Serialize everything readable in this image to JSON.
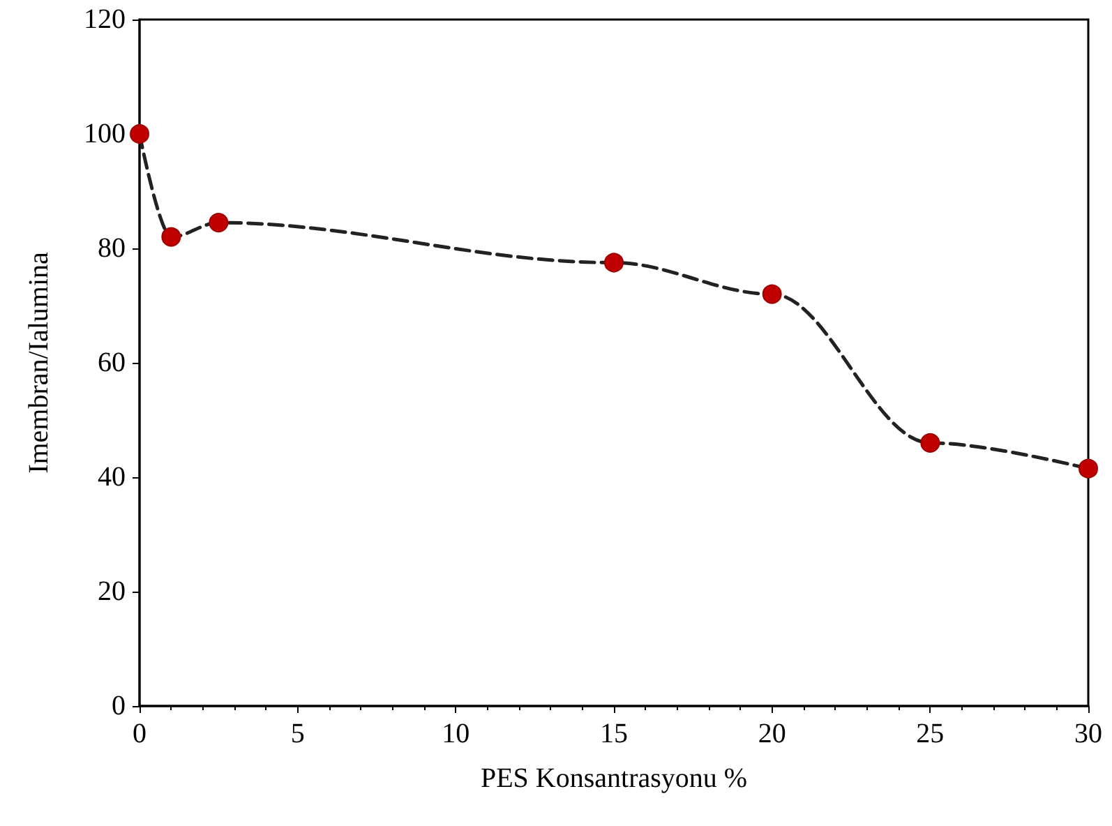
{
  "chart_data": {
    "type": "line",
    "xlabel": "PES Konsantrasyonu %",
    "ylabel": "Imembran/Ialumina",
    "x": [
      0,
      1,
      2.5,
      15,
      20,
      25,
      30
    ],
    "series": [
      {
        "color": "#c00000",
        "values": [
          100,
          82,
          84.5,
          77.5,
          72,
          46,
          41.5
        ]
      }
    ],
    "xlim": [
      0,
      30
    ],
    "xticks": [
      0,
      5,
      10,
      15,
      20,
      25,
      30
    ],
    "ylim": [
      0,
      120
    ],
    "yticks": [
      0,
      20,
      40,
      60,
      80,
      100,
      120
    ],
    "grid": false,
    "marker": "circle",
    "line_style": "dashed"
  }
}
